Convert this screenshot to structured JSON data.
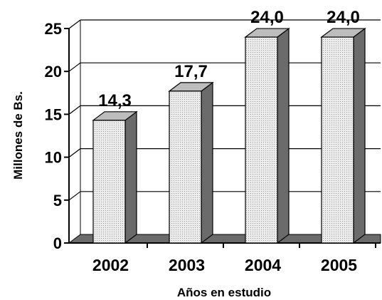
{
  "chart_data": {
    "type": "bar",
    "categories": [
      "2002",
      "2003",
      "2004",
      "2005"
    ],
    "values": [
      14.3,
      17.7,
      24.0,
      24.0
    ],
    "value_labels": [
      "14,3",
      "17,7",
      "24,0",
      "24,0"
    ],
    "ylabel": "Millones de Bs.",
    "xlabel": "Años en estudio",
    "ylim": [
      0,
      25
    ],
    "yticks": [
      "0",
      "5",
      "10",
      "15",
      "20",
      "25"
    ],
    "grid": true,
    "three_d": true,
    "colors": {
      "bar_front": "#e2e2e2",
      "bar_side": "#6b6b6b",
      "bar_top": "#bdbdbd",
      "floor": "#6b6b6b",
      "grid": "#000000"
    }
  }
}
